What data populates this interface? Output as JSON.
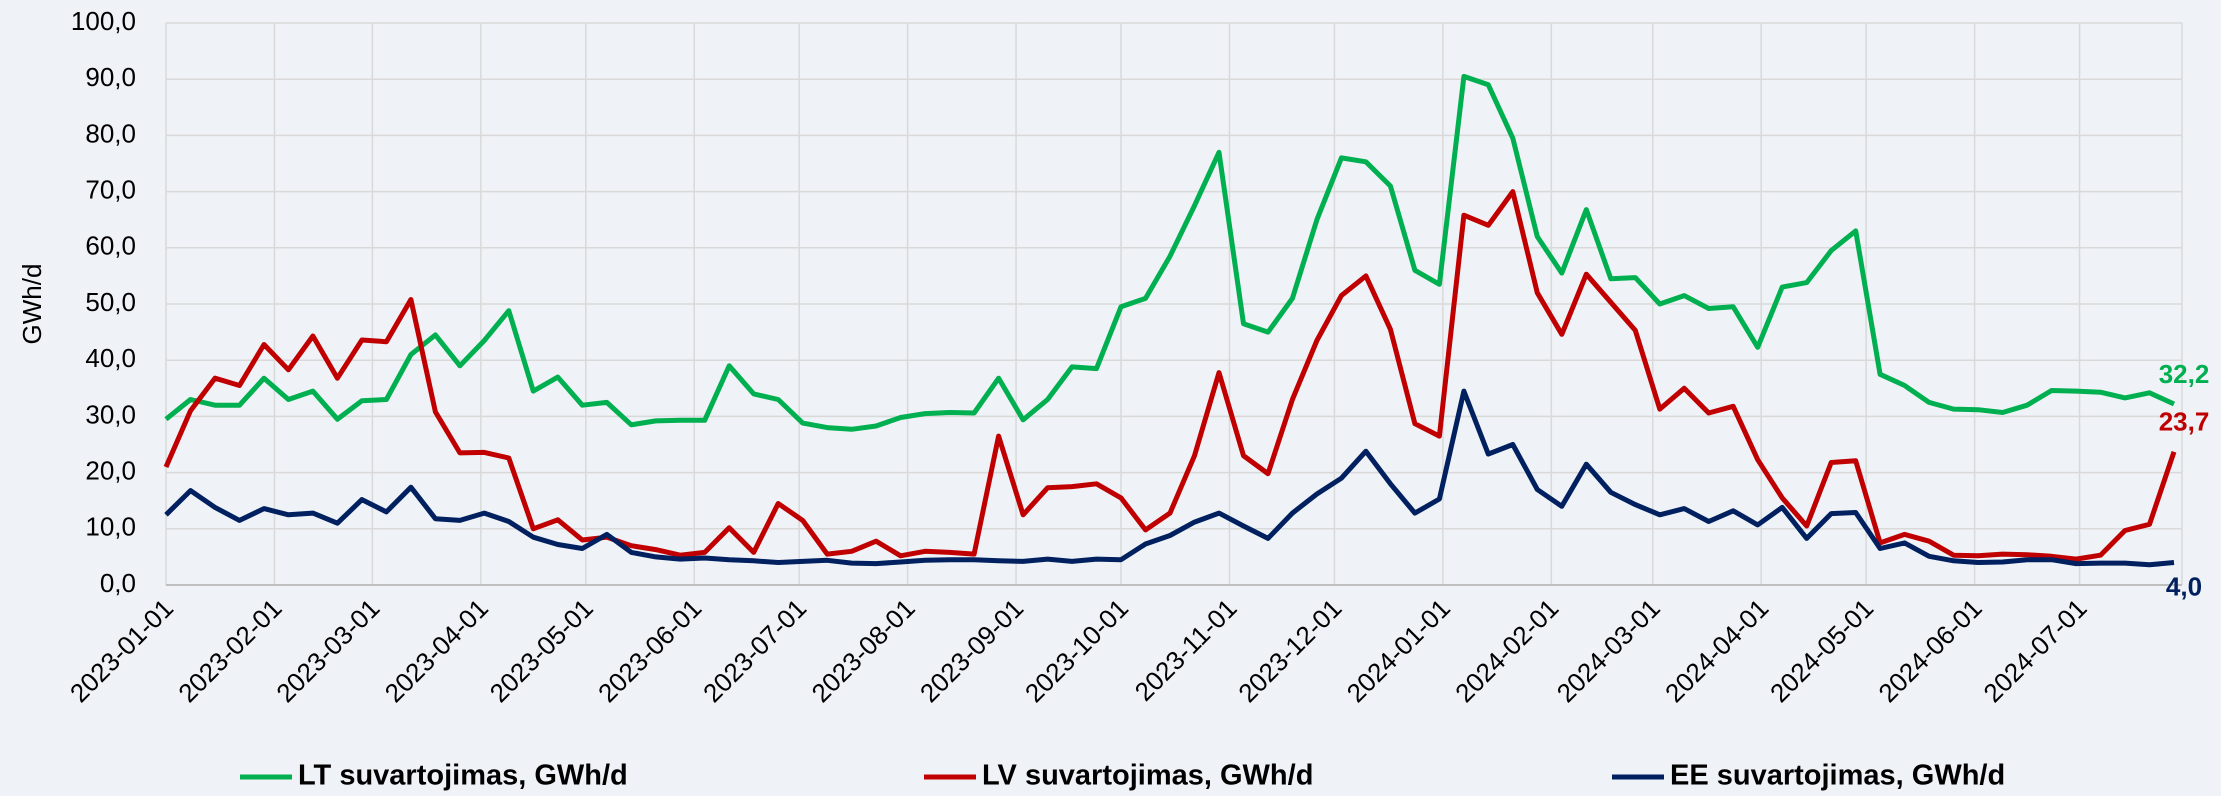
{
  "chart_data": {
    "type": "line",
    "y_label": "GWh/d",
    "x": [
      "2023-01-01",
      "2023-01-08",
      "2023-01-15",
      "2023-01-22",
      "2023-01-29",
      "2023-02-05",
      "2023-02-12",
      "2023-02-19",
      "2023-02-26",
      "2023-03-05",
      "2023-03-12",
      "2023-03-19",
      "2023-03-26",
      "2023-04-02",
      "2023-04-09",
      "2023-04-16",
      "2023-04-23",
      "2023-04-30",
      "2023-05-07",
      "2023-05-14",
      "2023-05-21",
      "2023-05-28",
      "2023-06-04",
      "2023-06-11",
      "2023-06-18",
      "2023-06-25",
      "2023-07-02",
      "2023-07-09",
      "2023-07-16",
      "2023-07-23",
      "2023-07-30",
      "2023-08-06",
      "2023-08-13",
      "2023-08-20",
      "2023-08-27",
      "2023-09-03",
      "2023-09-10",
      "2023-09-17",
      "2023-09-24",
      "2023-10-01",
      "2023-10-08",
      "2023-10-15",
      "2023-10-22",
      "2023-10-29",
      "2023-11-05",
      "2023-11-12",
      "2023-11-19",
      "2023-11-26",
      "2023-12-03",
      "2023-12-10",
      "2023-12-17",
      "2023-12-24",
      "2023-12-31",
      "2024-01-07",
      "2024-01-14",
      "2024-01-21",
      "2024-01-28",
      "2024-02-04",
      "2024-02-11",
      "2024-02-18",
      "2024-02-25",
      "2024-03-03",
      "2024-03-10",
      "2024-03-17",
      "2024-03-24",
      "2024-03-31",
      "2024-04-07",
      "2024-04-14",
      "2024-04-21",
      "2024-04-28",
      "2024-05-05",
      "2024-05-12",
      "2024-05-19",
      "2024-05-26",
      "2024-06-02",
      "2024-06-09",
      "2024-06-16",
      "2024-06-23",
      "2024-06-30",
      "2024-07-07",
      "2024-07-14",
      "2024-07-21",
      "2024-07-28"
    ],
    "xlim": [
      "2023-01-01",
      "2024-07-28"
    ],
    "xticks": [
      "2023-01-01",
      "2023-02-01",
      "2023-03-01",
      "2023-04-01",
      "2023-05-01",
      "2023-06-01",
      "2023-07-01",
      "2023-08-01",
      "2023-09-01",
      "2023-10-01",
      "2023-11-01",
      "2023-12-01",
      "2024-01-01",
      "2024-02-01",
      "2024-03-01",
      "2024-04-01",
      "2024-05-01",
      "2024-06-01",
      "2024-07-01"
    ],
    "ylim": [
      0,
      100
    ],
    "yticks": [
      {
        "value": 0,
        "label": "0,0"
      },
      {
        "value": 10,
        "label": "10,0"
      },
      {
        "value": 20,
        "label": "20,0"
      },
      {
        "value": 30,
        "label": "30,0"
      },
      {
        "value": 40,
        "label": "40,0"
      },
      {
        "value": 50,
        "label": "50,0"
      },
      {
        "value": 60,
        "label": "60,0"
      },
      {
        "value": 70,
        "label": "70,0"
      },
      {
        "value": 80,
        "label": "80,0"
      },
      {
        "value": 90,
        "label": "90,0"
      },
      {
        "value": 100,
        "label": "100,0"
      }
    ],
    "grid": true,
    "legend": "bottom",
    "series": [
      {
        "name": "LT suvartojimas, GWh/d",
        "color": "#00b050",
        "values": [
          29.5,
          33,
          32,
          32,
          36.8,
          33,
          34.5,
          29.5,
          32.8,
          33,
          41,
          44.5,
          39,
          43.5,
          48.8,
          34.5,
          37,
          32,
          32.5,
          28.5,
          29.2,
          29.3,
          29.3,
          39,
          34,
          33,
          28.8,
          28,
          27.7,
          28.3,
          29.8,
          30.5,
          30.7,
          30.6,
          36.8,
          29.4,
          33,
          38.8,
          38.5,
          49.5,
          51,
          58.5,
          67.5,
          77,
          46.5,
          45,
          51,
          65,
          76,
          75.3,
          71,
          56,
          53.5,
          90.5,
          89,
          79.5,
          62,
          55.5,
          66.8,
          54.5,
          54.7,
          50,
          51.5,
          49.2,
          49.5,
          42.3,
          53,
          53.8,
          59.5,
          63,
          37.5,
          35.5,
          32.5,
          31.3,
          31.2,
          30.7,
          32,
          34.6,
          34.5,
          34.3,
          33.3,
          34.2,
          32.2
        ],
        "value_labels": [
          null,
          null,
          null,
          null,
          null,
          null,
          null,
          null,
          null,
          null,
          null,
          null,
          null,
          null,
          null,
          null,
          null,
          null,
          null,
          null,
          null,
          null,
          null,
          null,
          null,
          null,
          null,
          null,
          null,
          null,
          null,
          null,
          null,
          null,
          null,
          null,
          null,
          null,
          null,
          null,
          null,
          null,
          null,
          null,
          null,
          null,
          null,
          null,
          null,
          null,
          null,
          null,
          null,
          null,
          null,
          null,
          null,
          null,
          null,
          null,
          null,
          null,
          null,
          null,
          null,
          null,
          null,
          null,
          null,
          null,
          null,
          null,
          null,
          null,
          null,
          null,
          null,
          null,
          null,
          null,
          null,
          null,
          "32,2"
        ]
      },
      {
        "name": "LV suvartojimas, GWh/d",
        "color": "#c00000",
        "values": [
          21,
          31,
          36.8,
          35.5,
          42.8,
          38.3,
          44.3,
          36.8,
          43.6,
          43.3,
          50.8,
          30.8,
          23.5,
          23.6,
          22.6,
          10,
          11.6,
          8,
          8.5,
          7,
          6.3,
          5.3,
          5.8,
          10.2,
          5.8,
          14.5,
          11.5,
          5.5,
          6,
          7.8,
          5.2,
          6,
          5.8,
          5.5,
          26.5,
          12.5,
          17.3,
          17.5,
          18,
          15.5,
          9.8,
          12.8,
          23,
          37.8,
          23,
          19.8,
          33,
          43.5,
          51.5,
          55,
          45.5,
          28.7,
          26.5,
          65.8,
          64,
          70,
          52,
          44.6,
          55.3,
          50.3,
          45.3,
          31.3,
          35,
          30.6,
          31.8,
          22.3,
          15.5,
          10.5,
          21.8,
          22.1,
          7.5,
          9,
          7.8,
          5.3,
          5.2,
          5.5,
          5.4,
          5.1,
          4.6,
          5.3,
          9.7,
          10.8,
          23.7
        ],
        "value_labels": [
          null,
          null,
          null,
          null,
          null,
          null,
          null,
          null,
          null,
          null,
          null,
          null,
          null,
          null,
          null,
          null,
          null,
          null,
          null,
          null,
          null,
          null,
          null,
          null,
          null,
          null,
          null,
          null,
          null,
          null,
          null,
          null,
          null,
          null,
          null,
          null,
          null,
          null,
          null,
          null,
          null,
          null,
          null,
          null,
          null,
          null,
          null,
          null,
          null,
          null,
          null,
          null,
          null,
          null,
          null,
          null,
          null,
          null,
          null,
          null,
          null,
          null,
          null,
          null,
          null,
          null,
          null,
          null,
          null,
          null,
          null,
          null,
          null,
          null,
          null,
          null,
          null,
          null,
          null,
          null,
          null,
          null,
          "23,7"
        ]
      },
      {
        "name": "EE suvartojimas, GWh/d",
        "color": "#002060",
        "values": [
          12.5,
          16.8,
          13.8,
          11.5,
          13.6,
          12.5,
          12.8,
          11,
          15.2,
          13,
          17.4,
          11.8,
          11.5,
          12.8,
          11.3,
          8.5,
          7.2,
          6.5,
          9,
          5.8,
          5,
          4.6,
          4.8,
          4.5,
          4.3,
          4,
          4.2,
          4.4,
          3.9,
          3.8,
          4.1,
          4.4,
          4.5,
          4.5,
          4.3,
          4.2,
          4.6,
          4.2,
          4.6,
          4.5,
          7.3,
          8.8,
          11.2,
          12.8,
          10.5,
          8.3,
          12.8,
          16.2,
          19,
          23.8,
          18,
          12.8,
          15.3,
          34.5,
          23.3,
          25,
          17,
          14,
          21.5,
          16.5,
          14.3,
          12.5,
          13.6,
          11.3,
          13.2,
          10.7,
          13.8,
          8.3,
          12.7,
          12.9,
          6.5,
          7.5,
          5.1,
          4.3,
          4,
          4.1,
          4.5,
          4.5,
          3.8,
          3.9,
          3.9,
          3.6,
          4.0
        ],
        "value_labels": [
          null,
          null,
          null,
          null,
          null,
          null,
          null,
          null,
          null,
          null,
          null,
          null,
          null,
          null,
          null,
          null,
          null,
          null,
          null,
          null,
          null,
          null,
          null,
          null,
          null,
          null,
          null,
          null,
          null,
          null,
          null,
          null,
          null,
          null,
          null,
          null,
          null,
          null,
          null,
          null,
          null,
          null,
          null,
          null,
          null,
          null,
          null,
          null,
          null,
          null,
          null,
          null,
          null,
          null,
          null,
          null,
          null,
          null,
          null,
          null,
          null,
          null,
          null,
          null,
          null,
          null,
          null,
          null,
          null,
          null,
          null,
          null,
          null,
          null,
          null,
          null,
          null,
          null,
          null,
          null,
          null,
          null,
          "4,0"
        ]
      }
    ]
  }
}
